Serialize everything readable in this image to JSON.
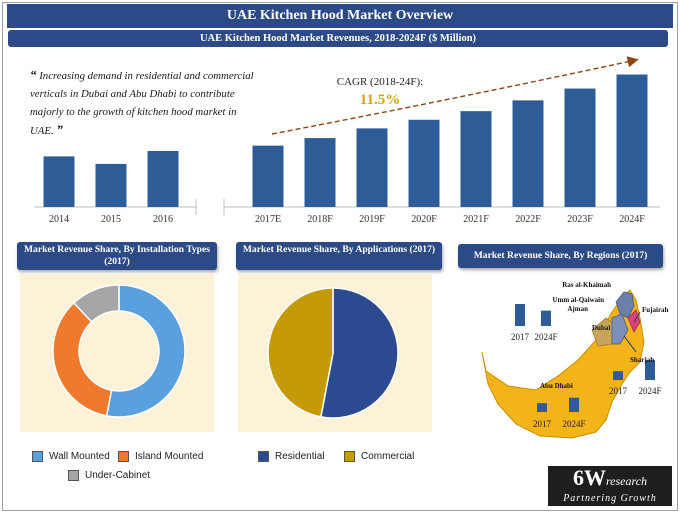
{
  "header": {
    "title": "UAE Kitchen Hood Market Overview"
  },
  "revenue_section": {
    "title": "UAE Kitchen Hood Market Revenues, 2018-2024F ($ Million)",
    "quote": "Increasing demand in residential and commercial verticals in Dubai and Abu Dhabi to contribute majorly to the growth of kitchen hood market in UAE.",
    "quote_open": "“",
    "quote_close": "”",
    "cagr_label": "CAGR (2018-24F):",
    "cagr_value": "11.5%"
  },
  "installation_section": {
    "title": "Market Revenue Share, By Installation Types (2017)"
  },
  "applications_section": {
    "title": "Market Revenue Share, By Applications (2017)"
  },
  "regions_section": {
    "title": "Market Revenue Share, By Regions (2017)",
    "map_labels": [
      "Ras al-Khaimah",
      "Umm al-Qaiwain",
      "Ajman",
      "Fujairah",
      "Dubai",
      "Sharjah",
      "Abu Dhabi"
    ]
  },
  "colors": {
    "banner": "#2c4a86",
    "bar": "#2e5c97",
    "wall_mounted": "#5aa0de",
    "island_mounted": "#f07a2c",
    "under_cabinet": "#a6a6a6",
    "residential": "#2b4a8f",
    "commercial": "#c49a06",
    "map_fill": "#f2b418",
    "panel_bg": "#fbf2d8",
    "cagr": "#d9a21b"
  },
  "logo": {
    "big": "6W",
    "rest": "research",
    "tagline": "Partnering Growth"
  },
  "chart_data": [
    {
      "type": "bar",
      "name_hint": "revenues",
      "categories": [
        "2014",
        "2015",
        "2016",
        "2017E",
        "2018F",
        "2019F",
        "2020F",
        "2021F",
        "2022F",
        "2023F",
        "2024F"
      ],
      "values": [
        47,
        40,
        52,
        57,
        64,
        73,
        81,
        89,
        99,
        110,
        123
      ],
      "ylim": [
        0,
        130
      ],
      "grid": false
    },
    {
      "type": "pie",
      "donut": true,
      "categories": [
        "Wall Mounted",
        "Island Mounted",
        "Under-Cabinet"
      ],
      "values": [
        53,
        35,
        12
      ]
    },
    {
      "type": "pie",
      "categories": [
        "Residential",
        "Commercial"
      ],
      "values": [
        53,
        47
      ]
    },
    {
      "type": "bar",
      "name_hint": "dubai-region",
      "categories": [
        "2017",
        "2024F"
      ],
      "values": [
        10,
        7
      ]
    },
    {
      "type": "bar",
      "name_hint": "sharjah-region",
      "categories": [
        "2017",
        "2024F"
      ],
      "values": [
        4,
        9
      ]
    },
    {
      "type": "bar",
      "name_hint": "abu-dhabi-region",
      "categories": [
        "2017",
        "2024F"
      ],
      "values": [
        4,
        6.5
      ]
    }
  ]
}
